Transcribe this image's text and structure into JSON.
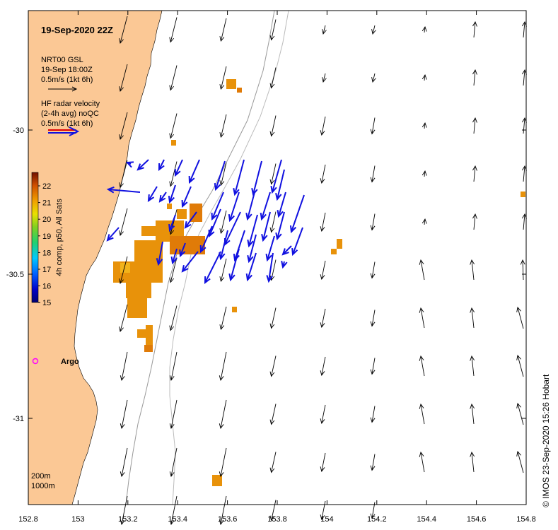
{
  "title": "19-Sep-2020 22Z",
  "credit": "© IMOS 23-Sep-2020 15:26 Hobart",
  "x_ticks": [
    "152.8",
    "153",
    "153.2",
    "153.4",
    "153.6",
    "153.8",
    "154",
    "154.2",
    "154.4",
    "154.6",
    "154.8"
  ],
  "y_ticks": [
    "-30",
    "-30.5",
    "-31"
  ],
  "model_legend": {
    "line1": "NRT00 GSL",
    "line2": "19-Sep 18:00Z",
    "line3": "0.5m/s (1kt 6h)"
  },
  "radar_legend": {
    "line1": "HF radar velocity",
    "line2": "(2-4h avg) noQC",
    "line3": "0.5m/s (1kt 6h)"
  },
  "colorbar": {
    "title": "4h comp, p50, All Sats",
    "labels": [
      "22",
      "21",
      "20",
      "19",
      "18",
      "17",
      "16",
      "15"
    ]
  },
  "argo_label": "Argo",
  "depth_labels": {
    "a": "200m",
    "b": "1000m"
  },
  "colors": {
    "land": "#fbc895",
    "model_arrow": "#000000",
    "radar_arrow": "#1010e0",
    "sst_warm": "#e8920a",
    "sst_hot": "#e07b08",
    "argo": "#ff00ff"
  }
}
